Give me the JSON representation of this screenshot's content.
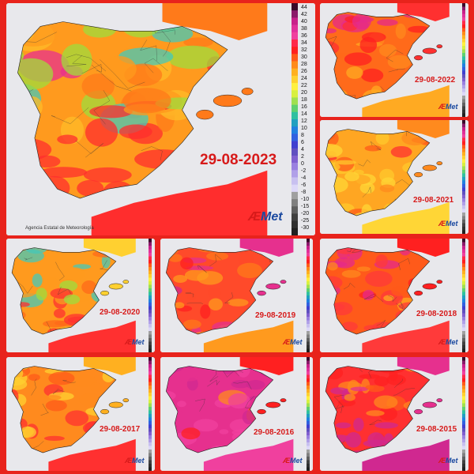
{
  "legend": {
    "ticks": [
      "44",
      "42",
      "40",
      "38",
      "36",
      "34",
      "32",
      "30",
      "28",
      "26",
      "24",
      "22",
      "20",
      "18",
      "16",
      "14",
      "12",
      "10",
      "8",
      "6",
      "4",
      "2",
      "0",
      "-2",
      "-4",
      "-6",
      "-8",
      "-10",
      "-15",
      "-20",
      "-25",
      "-30"
    ],
    "colors": [
      "#3a0a2a",
      "#8a1a6a",
      "#c8208a",
      "#e0309a",
      "#f0409e",
      "#ff2a4a",
      "#ff2020",
      "#ff5a1a",
      "#ff8a1a",
      "#ffb020",
      "#ffd030",
      "#fff040",
      "#d8f040",
      "#a0e050",
      "#60d070",
      "#30c0a0",
      "#20a0c0",
      "#2080e0",
      "#3060e0",
      "#4040d0",
      "#6050c0",
      "#8060d0",
      "#9a80e0",
      "#b0a0e8",
      "#c8c0f0",
      "#ddd8f8",
      "#a0a0a0",
      "#808080",
      "#606060",
      "#404040",
      "#303030",
      "#202020"
    ]
  },
  "agency": "Agencia Estatal de Meteorología",
  "logo": {
    "a": "Æ",
    "rest": "Met"
  },
  "maps": [
    {
      "date": "29-08-2023",
      "palette": [
        "#ff9a1e",
        "#ff7a1a",
        "#ffbb28",
        "#9fdc3c",
        "#45c8b8",
        "#e8308e",
        "#ff2d2d"
      ]
    },
    {
      "date": "29-08-2022",
      "palette": [
        "#ff6a1a",
        "#ff3030",
        "#ff8a1e",
        "#e62a8a",
        "#ff2020",
        "#ffaa22"
      ]
    },
    {
      "date": "29-08-2021",
      "palette": [
        "#ffa622",
        "#ff8a1e",
        "#ffc82c",
        "#ff5a1a",
        "#ff3030",
        "#ffd636"
      ]
    },
    {
      "date": "29-08-2020",
      "palette": [
        "#ff9a1e",
        "#ffd030",
        "#9fdc3c",
        "#45c8b8",
        "#ff6a1a",
        "#ff3030"
      ]
    },
    {
      "date": "29-08-2019",
      "palette": [
        "#ff4a2a",
        "#e6308e",
        "#ff2020",
        "#ff7a1a",
        "#d02890",
        "#ff9a1e"
      ]
    },
    {
      "date": "29-08-2018",
      "palette": [
        "#ff5a1a",
        "#ff2020",
        "#ff8a1e",
        "#e62a8a",
        "#ffaa22",
        "#ff3a3a"
      ]
    },
    {
      "date": "29-08-2017",
      "palette": [
        "#ff8a1e",
        "#ffb020",
        "#ff5a1a",
        "#ffd030",
        "#9fdc3c",
        "#ff3030"
      ]
    },
    {
      "date": "29-08-2016",
      "palette": [
        "#e6308e",
        "#ff2020",
        "#ff5a1a",
        "#d02890",
        "#ff8a1e",
        "#f0409e"
      ]
    },
    {
      "date": "29-08-2015",
      "palette": [
        "#ff3030",
        "#e6308e",
        "#ff5a1a",
        "#ff2020",
        "#ff8a1e",
        "#d02890"
      ]
    }
  ]
}
